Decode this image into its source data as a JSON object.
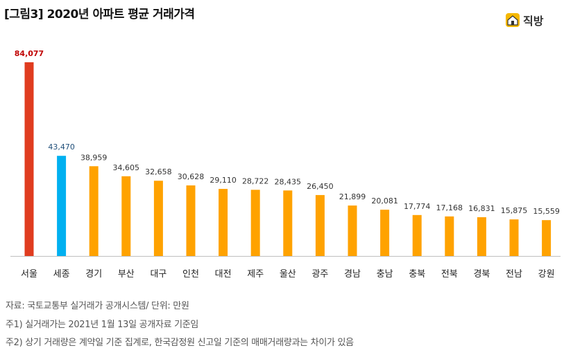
{
  "title": "[그림3] 2020년 아파트 평균 거래가격",
  "logo": {
    "text": "직방",
    "icon": "house-logo-icon"
  },
  "notes": {
    "source": "자료: 국토교통부 실거래가 공개시스템/ 단위: 만원",
    "note1": "주1) 실거래가는 2021년 1월 13일  공개자료 기준임",
    "note2": "주2) 상기 거래량은 계약일 기준 집계로, 한국감정원 신고일 기준의 매매거래량과는 차이가 있음"
  },
  "colors": {
    "default": "#FFA200",
    "highlight_max": "#E03C1F",
    "highlight_second": "#00B0F0",
    "label_max": "#C00000",
    "label_second": "#1F4E79",
    "label_default": "#333333"
  },
  "chart_data": {
    "type": "bar",
    "categories": [
      "서울",
      "세종",
      "경기",
      "부산",
      "대구",
      "인천",
      "대전",
      "제주",
      "울산",
      "광주",
      "경남",
      "충남",
      "충북",
      "전북",
      "경북",
      "전남",
      "강원"
    ],
    "values": [
      84077,
      43470,
      38959,
      34605,
      32658,
      30628,
      29110,
      28722,
      28435,
      26450,
      21899,
      20081,
      17774,
      17168,
      16831,
      15875,
      15559
    ],
    "value_labels": [
      "84,077",
      "43,470",
      "38,959",
      "34,605",
      "32,658",
      "30,628",
      "29,110",
      "28,722",
      "28,435",
      "26,450",
      "21,899",
      "20,081",
      "17,774",
      "17,168",
      "16,831",
      "15,875",
      "15,559"
    ],
    "bar_colors": [
      "highlight_max",
      "highlight_second",
      "default",
      "default",
      "default",
      "default",
      "default",
      "default",
      "default",
      "default",
      "default",
      "default",
      "default",
      "default",
      "default",
      "default",
      "default"
    ],
    "ylim": [
      0,
      84077
    ],
    "grid": false,
    "legend": "none"
  }
}
